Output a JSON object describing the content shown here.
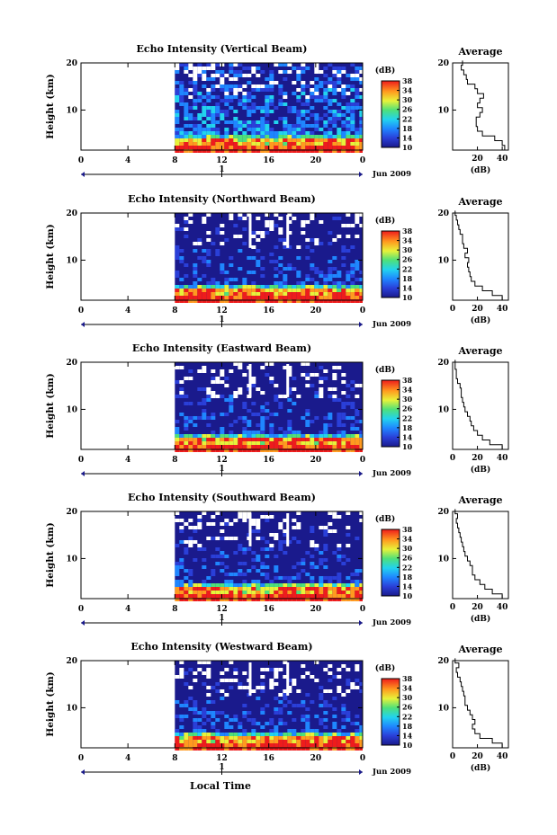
{
  "figure": {
    "xlabel": "Local Time"
  },
  "chart_data": [
    {
      "type": "heatmap",
      "title": "Echo Intensity (Vertical Beam)",
      "ylabel": "Height (km)",
      "x_ticks": [
        "0",
        "4",
        "8",
        "12",
        "16",
        "20",
        "0"
      ],
      "y_ticks": [
        "20",
        "10"
      ],
      "xlim": [
        0,
        24
      ],
      "ylim": [
        1.5,
        20
      ],
      "data_start_hour": 8,
      "date_marker": "1",
      "date_label": "Jun 2009",
      "colorbar": {
        "label": "(dB)",
        "ticks": [
          "38",
          "34",
          "30",
          "26",
          "22",
          "18",
          "14",
          "10"
        ],
        "range": [
          10,
          38
        ]
      },
      "average_profile": {
        "title": "Average",
        "xlabel": "(dB)",
        "x_ticks": [
          "20",
          "40"
        ],
        "y_ticks": [
          "20",
          "10"
        ],
        "xlim": [
          0,
          45
        ],
        "ylim": [
          1.5,
          20
        ],
        "height_km": [
          2,
          3,
          4,
          5,
          6,
          7,
          8,
          9,
          10,
          11,
          12,
          13,
          14,
          15,
          16,
          17,
          18,
          19,
          20
        ],
        "values_db": [
          42,
          40,
          34,
          24,
          20,
          19,
          19,
          22,
          24,
          20,
          22,
          25,
          20,
          18,
          12,
          11,
          9,
          7,
          8
        ]
      }
    },
    {
      "type": "heatmap",
      "title": "Echo Intensity (Northward Beam)",
      "ylabel": "Height (km)",
      "x_ticks": [
        "0",
        "4",
        "8",
        "12",
        "16",
        "20",
        "0"
      ],
      "y_ticks": [
        "20",
        "10"
      ],
      "xlim": [
        0,
        24
      ],
      "ylim": [
        1.5,
        20
      ],
      "data_start_hour": 8,
      "date_marker": "1",
      "date_label": "Jun 2009",
      "colorbar": {
        "label": "(dB)",
        "ticks": [
          "38",
          "34",
          "30",
          "26",
          "22",
          "18",
          "14",
          "10"
        ],
        "range": [
          10,
          38
        ]
      },
      "average_profile": {
        "title": "Average",
        "xlabel": "(dB)",
        "x_ticks": [
          "0",
          "20",
          "40"
        ],
        "y_ticks": [
          "20",
          "10"
        ],
        "xlim": [
          0,
          45
        ],
        "ylim": [
          1.5,
          20
        ],
        "height_km": [
          2,
          3,
          4,
          5,
          6,
          7,
          8,
          9,
          10,
          11,
          12,
          13,
          14,
          15,
          16,
          17,
          18,
          19,
          20
        ],
        "values_db": [
          40,
          32,
          24,
          18,
          15,
          14,
          13,
          12,
          13,
          10,
          12,
          9,
          8,
          8,
          6,
          5,
          4,
          3,
          2
        ]
      }
    },
    {
      "type": "heatmap",
      "title": "Echo Intensity (Eastward Beam)",
      "ylabel": "Height (km)",
      "x_ticks": [
        "0",
        "4",
        "8",
        "12",
        "16",
        "20",
        "0"
      ],
      "y_ticks": [
        "20",
        "10"
      ],
      "xlim": [
        0,
        24
      ],
      "ylim": [
        1.5,
        20
      ],
      "data_start_hour": 8,
      "date_marker": "1",
      "date_label": "Jun 2009",
      "colorbar": {
        "label": "(dB)",
        "ticks": [
          "38",
          "34",
          "30",
          "26",
          "22",
          "18",
          "14",
          "10"
        ],
        "range": [
          10,
          38
        ]
      },
      "average_profile": {
        "title": "Average",
        "xlabel": "(dB)",
        "x_ticks": [
          "0",
          "20",
          "40"
        ],
        "y_ticks": [
          "20",
          "10"
        ],
        "xlim": [
          0,
          45
        ],
        "ylim": [
          1.5,
          20
        ],
        "height_km": [
          2,
          3,
          4,
          5,
          6,
          7,
          8,
          9,
          10,
          11,
          12,
          13,
          14,
          15,
          16,
          17,
          18,
          19,
          20
        ],
        "values_db": [
          40,
          30,
          24,
          20,
          17,
          15,
          14,
          12,
          10,
          9,
          8,
          7,
          7,
          6,
          4,
          3,
          3,
          2,
          2
        ]
      }
    },
    {
      "type": "heatmap",
      "title": "Echo Intensity (Southward Beam)",
      "ylabel": "Height (km)",
      "x_ticks": [
        "0",
        "4",
        "8",
        "12",
        "16",
        "20",
        "0"
      ],
      "y_ticks": [
        "20",
        "10"
      ],
      "xlim": [
        0,
        24
      ],
      "ylim": [
        1.5,
        20
      ],
      "data_start_hour": 8,
      "date_marker": "1",
      "date_label": "Jun 2009",
      "colorbar": {
        "label": "(dB)",
        "ticks": [
          "38",
          "34",
          "30",
          "26",
          "22",
          "18",
          "14",
          "10"
        ],
        "range": [
          10,
          38
        ]
      },
      "average_profile": {
        "title": "Average",
        "xlabel": "(dB)",
        "x_ticks": [
          "0",
          "20",
          "40"
        ],
        "y_ticks": [
          "20",
          "10"
        ],
        "xlim": [
          0,
          45
        ],
        "ylim": [
          1.5,
          20
        ],
        "height_km": [
          2,
          3,
          4,
          5,
          6,
          7,
          8,
          9,
          10,
          11,
          12,
          13,
          14,
          15,
          16,
          17,
          18,
          19,
          20
        ],
        "values_db": [
          40,
          32,
          26,
          22,
          18,
          16,
          16,
          14,
          12,
          10,
          9,
          8,
          7,
          6,
          5,
          4,
          3,
          4,
          2
        ]
      }
    },
    {
      "type": "heatmap",
      "title": "Echo Intensity (Westward Beam)",
      "ylabel": "Height (km)",
      "x_ticks": [
        "0",
        "4",
        "8",
        "12",
        "16",
        "20",
        "0"
      ],
      "y_ticks": [
        "20",
        "10"
      ],
      "xlim": [
        0,
        24
      ],
      "ylim": [
        1.5,
        20
      ],
      "data_start_hour": 8,
      "date_marker": "1",
      "date_label": "Jun 2009",
      "colorbar": {
        "label": "(dB)",
        "ticks": [
          "38",
          "34",
          "30",
          "26",
          "22",
          "18",
          "14",
          "10"
        ],
        "range": [
          10,
          38
        ]
      },
      "average_profile": {
        "title": "Average",
        "xlabel": "(dB)",
        "x_ticks": [
          "0",
          "20",
          "40"
        ],
        "y_ticks": [
          "20",
          "10"
        ],
        "xlim": [
          0,
          45
        ],
        "ylim": [
          1.5,
          20
        ],
        "height_km": [
          2,
          3,
          4,
          5,
          6,
          7,
          8,
          9,
          10,
          11,
          12,
          13,
          14,
          15,
          16,
          17,
          18,
          19,
          20
        ],
        "values_db": [
          40,
          32,
          22,
          18,
          16,
          18,
          16,
          14,
          12,
          10,
          10,
          9,
          8,
          7,
          6,
          4,
          3,
          5,
          2
        ]
      }
    }
  ]
}
